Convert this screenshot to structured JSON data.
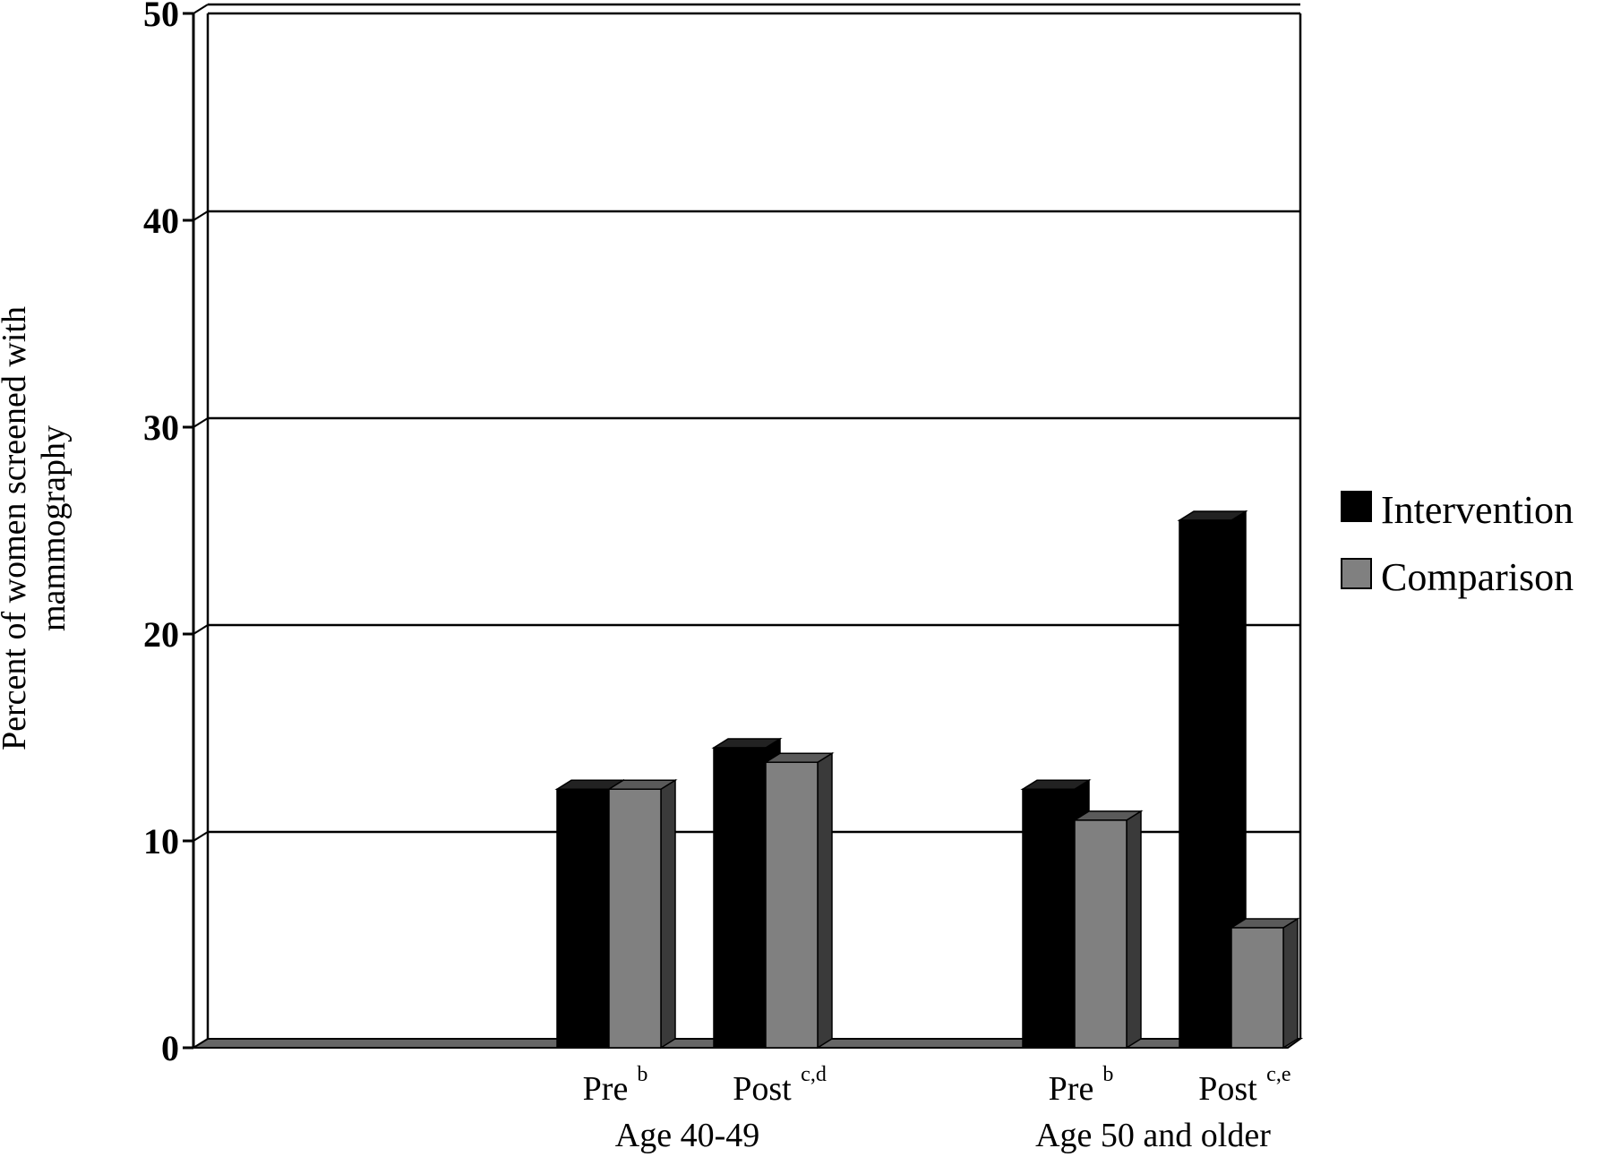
{
  "chart_data": {
    "type": "bar",
    "title": "",
    "ylabel_lines": [
      "Percent of women screened with",
      "mammography"
    ],
    "ylim": [
      0,
      50
    ],
    "yticks": [
      "0",
      "10",
      "20",
      "30",
      "40",
      "50"
    ],
    "grid": true,
    "legend_position": "right",
    "groups": [
      {
        "label": "Age 40-49",
        "categories": [
          {
            "label": "Pre",
            "sup": "b"
          },
          {
            "label": "Post",
            "sup": "c,d"
          }
        ]
      },
      {
        "label": "Age 50 and older",
        "categories": [
          {
            "label": "Pre",
            "sup": "b"
          },
          {
            "label": "Post",
            "sup": "c,e"
          }
        ]
      }
    ],
    "series": [
      {
        "name": "Intervention",
        "color": "#000000",
        "values": [
          12.5,
          14.5,
          12.5,
          25.5
        ]
      },
      {
        "name": "Comparison",
        "color": "#808080",
        "values": [
          12.5,
          13.8,
          11.0,
          5.8
        ]
      }
    ]
  }
}
